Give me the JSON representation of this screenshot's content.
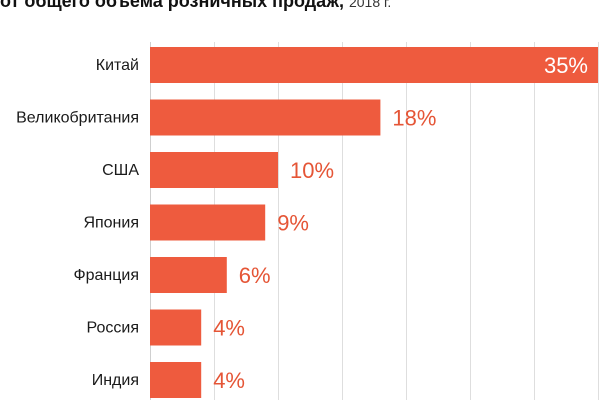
{
  "title": {
    "main": "от общего объема розничных продаж,",
    "year": "2018 г."
  },
  "colors": {
    "bar": "#ee5b3e",
    "value_outside": "#e55536",
    "value_inside": "#ffffff",
    "grid": "#dedede"
  },
  "chart_data": {
    "type": "bar",
    "orientation": "horizontal",
    "categories": [
      "Китай",
      "Великобритания",
      "США",
      "Япония",
      "Франция",
      "Россия",
      "Индия"
    ],
    "values": [
      35,
      18,
      10,
      9,
      6,
      4,
      4
    ],
    "value_labels": [
      "35%",
      "18%",
      "10%",
      "9%",
      "6%",
      "4%",
      "4%"
    ],
    "xlim": [
      0,
      35
    ],
    "grid": true
  }
}
